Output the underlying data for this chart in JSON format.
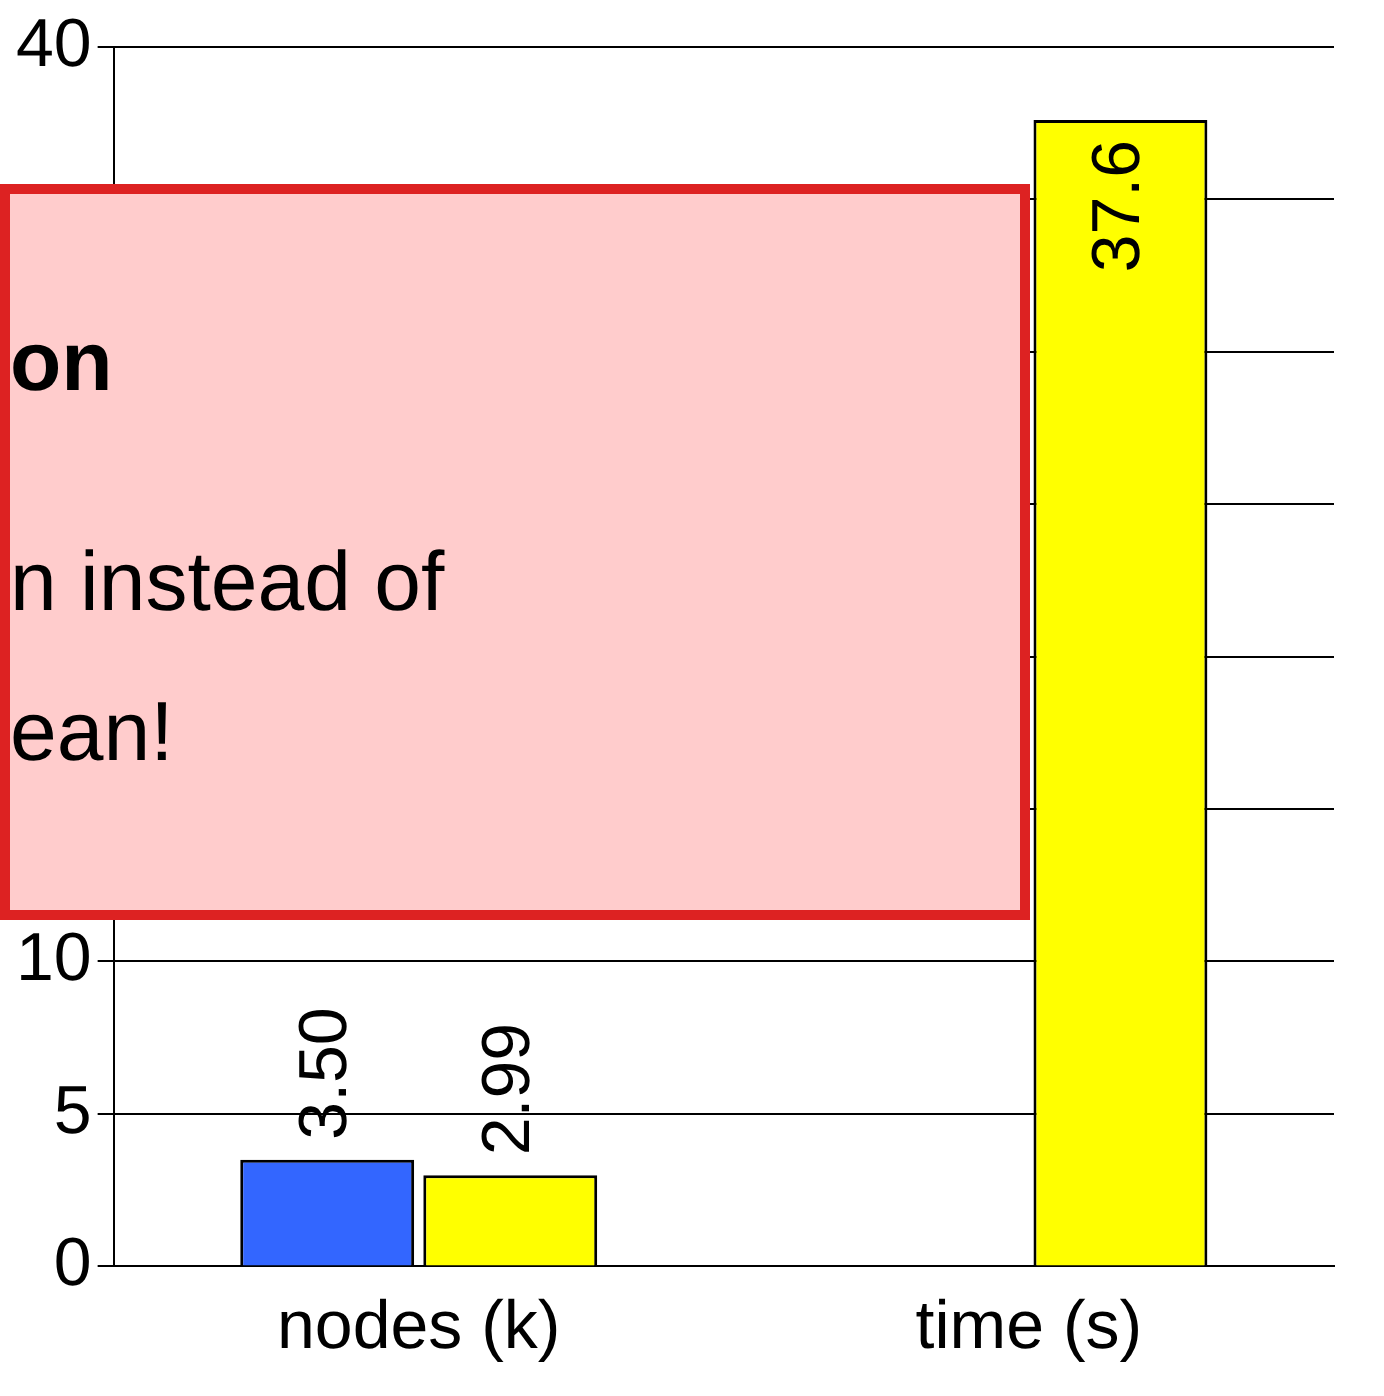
{
  "chart_data": {
    "type": "bar",
    "categories": [
      "nodes (k)",
      "time (s)"
    ],
    "series": [
      {
        "color": "#3366ff",
        "values": [
          3.5,
          null
        ],
        "value_labels": [
          "3.50",
          null
        ]
      },
      {
        "color": "#ffff00",
        "values": [
          2.99,
          37.6
        ],
        "value_labels": [
          "2.99",
          "37.6"
        ]
      }
    ],
    "ylim": [
      0,
      40
    ],
    "yticks": [
      0,
      5,
      10,
      {
        "value": 15,
        "label": null
      },
      {
        "value": 20,
        "label": null
      },
      {
        "value": 25,
        "label": null
      },
      {
        "value": 30,
        "label": null
      },
      {
        "value": 35,
        "label": null
      },
      40
    ],
    "grid": "y",
    "legend": false,
    "annotations": [
      "on",
      "n instead of",
      "ean!"
    ]
  }
}
